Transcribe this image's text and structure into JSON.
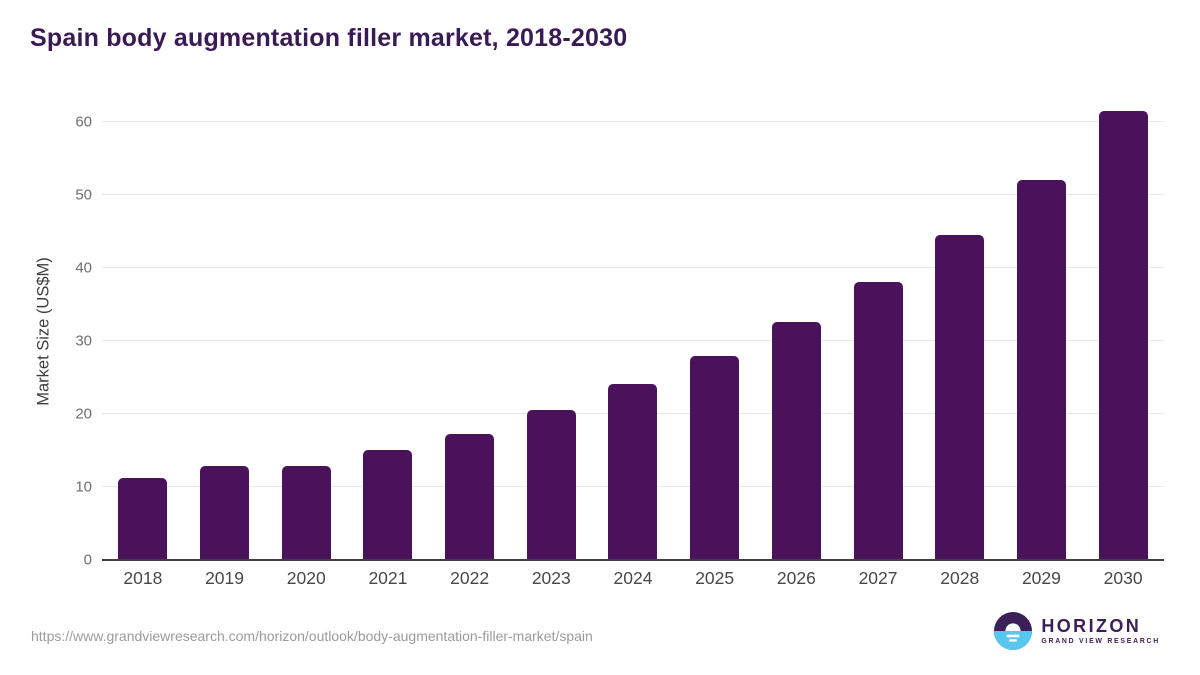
{
  "title": "Spain body augmentation filler market, 2018-2030",
  "source_url": "https://www.grandviewresearch.com/horizon/outlook/body-augmentation-filler-market/spain",
  "logo": {
    "wordmark": "HORIZON",
    "subtitle": "GRAND VIEW RESEARCH",
    "purple": "#3A2057",
    "blue": "#58C7F0"
  },
  "colors": {
    "bar": "#4A125A",
    "title": "#3A1A55",
    "gridline": "#E7E7E7",
    "axis_line": "#3F3F3F",
    "y_tick": "#6F6F6F",
    "x_label": "#484848",
    "url_text": "#9B9B9B",
    "background": "#FFFFFF"
  },
  "chart_data": {
    "type": "bar",
    "title": "Spain body augmentation filler market, 2018-2030",
    "categories": [
      "2018",
      "2019",
      "2020",
      "2021",
      "2022",
      "2023",
      "2024",
      "2025",
      "2026",
      "2027",
      "2028",
      "2029",
      "2030"
    ],
    "values": [
      11.2,
      12.9,
      12.9,
      15.1,
      17.3,
      20.5,
      24.1,
      28.0,
      32.6,
      38.1,
      44.5,
      52.1,
      61.5
    ],
    "xlabel": "",
    "ylabel": "Market Size (US$M)",
    "ylim": [
      0,
      63
    ],
    "yticks": [
      0,
      10,
      20,
      30,
      40,
      50,
      60
    ],
    "grid": true,
    "legend": "none",
    "bar_color": "#4A125A"
  }
}
